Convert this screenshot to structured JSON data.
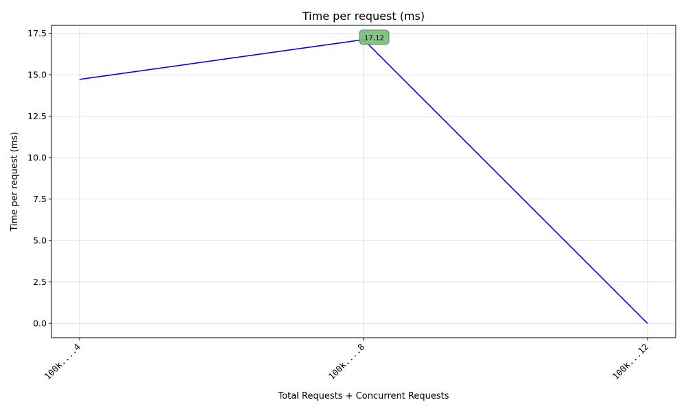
{
  "chart_data": {
    "type": "line",
    "title": "Time per request (ms)",
    "xlabel": "Total Requests + Concurrent Requests",
    "ylabel": "Time per request (ms)",
    "categories": [
      "100k....4",
      "100k....8",
      "100k...12"
    ],
    "series": [
      {
        "values": [
          14.72,
          17.12,
          0.0
        ],
        "color": "#0000ff"
      }
    ],
    "ylim": [
      -0.86,
      17.98
    ],
    "yticks": [
      0.0,
      2.5,
      5.0,
      7.5,
      10.0,
      12.5,
      15.0,
      17.5
    ],
    "ytick_labels": [
      "0.0",
      "2.5",
      "5.0",
      "7.5",
      "10.0",
      "12.5",
      "15.0",
      "17.5"
    ],
    "grid": true,
    "annotation": {
      "category_index": 1,
      "value": 17.12,
      "label": "17.12",
      "marker_color": "#008000",
      "box_color": "#7fbf7f"
    }
  }
}
